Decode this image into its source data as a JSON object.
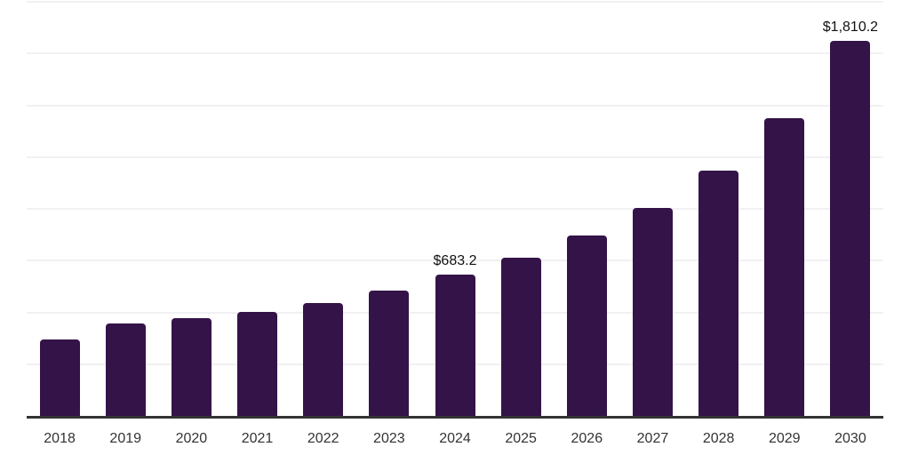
{
  "chart_data": {
    "type": "bar",
    "title": "",
    "xlabel": "",
    "ylabel": "",
    "categories": [
      "2018",
      "2019",
      "2020",
      "2021",
      "2022",
      "2023",
      "2024",
      "2025",
      "2026",
      "2027",
      "2028",
      "2029",
      "2030"
    ],
    "values": [
      368.0,
      446.0,
      472.0,
      503.0,
      546.0,
      606.0,
      683.2,
      766.0,
      872.0,
      1004.0,
      1186.0,
      1438.0,
      1810.2
    ],
    "bar_labels": [
      "",
      "",
      "",
      "",
      "",
      "",
      "$683.2",
      "",
      "",
      "",
      "",
      "",
      "$1,810.2"
    ],
    "ylim": [
      0,
      2000
    ],
    "gridline_step": 250,
    "grid": true,
    "legend": "none",
    "colors": {
      "bar": "#341348",
      "axis": "#333333",
      "gridline": "#f1f1f3",
      "tick_text": "#333333",
      "label_text": "#111111"
    }
  }
}
